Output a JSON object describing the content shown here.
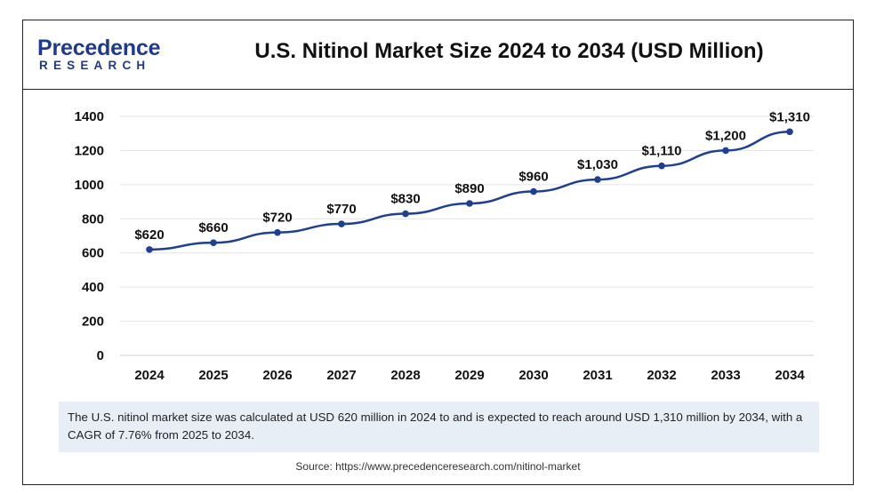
{
  "brand": {
    "logo_top": "Precedence",
    "logo_bottom": "RESEARCH",
    "color": "#1f3a8a"
  },
  "title": "U.S. Nitinol Market Size 2024 to 2034 (USD Million)",
  "note": "The U.S. nitinol market size was calculated at USD 620 million in 2024 to and is expected to reach around USD 1,310 million by 2034, with a CAGR of 7.76% from 2025 to 2034.",
  "source": "Source: https://www.precedenceresearch.com/nitinol-market",
  "chart_data": {
    "type": "line",
    "title": "U.S. Nitinol Market Size 2024 to 2034 (USD Million)",
    "xlabel": "",
    "ylabel": "",
    "categories": [
      "2024",
      "2025",
      "2026",
      "2027",
      "2028",
      "2029",
      "2030",
      "2031",
      "2032",
      "2033",
      "2034"
    ],
    "values": [
      620,
      660,
      720,
      770,
      830,
      890,
      960,
      1030,
      1110,
      1200,
      1310
    ],
    "data_labels": [
      "$620",
      "$660",
      "$720",
      "$770",
      "$830",
      "$890",
      "$960",
      "$1,030",
      "$1,110",
      "$1,200",
      "$1,310"
    ],
    "yticks": [
      0,
      200,
      400,
      600,
      800,
      1000,
      1200,
      1400
    ],
    "ylim": [
      0,
      1400
    ],
    "grid": true,
    "line_color": "#1f3f91"
  }
}
